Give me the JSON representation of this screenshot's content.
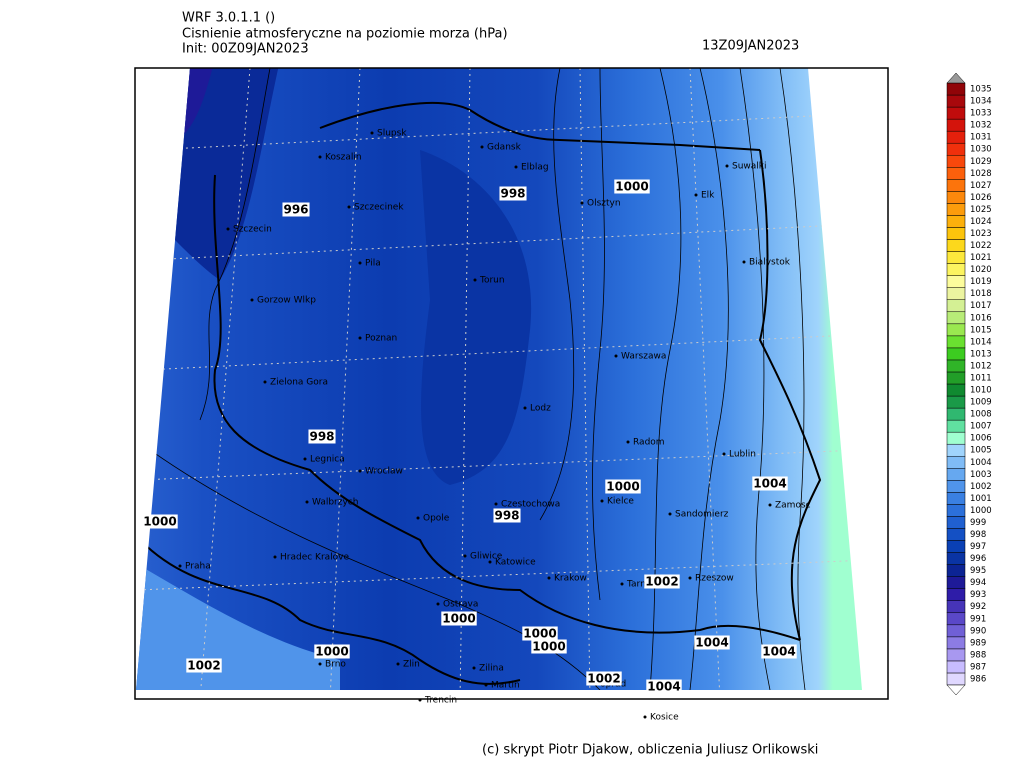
{
  "header": {
    "model": "WRF 3.0.1.1 ()",
    "field": "Cisnienie atmosferyczne na poziomie morza (hPa)",
    "init": "Init: 00Z09JAN2023",
    "valid": "13Z09JAN2023"
  },
  "footer": "(c) skrypt Piotr Djakow, obliczenia Juliusz Orlikowski",
  "cities": [
    "Slupsk",
    "Koszalin",
    "Gdansk",
    "Elblag",
    "Suwalki",
    "Szczecinek",
    "Olsztyn",
    "Elk",
    "Szczecin",
    "Pila",
    "Torun",
    "Bialystok",
    "Gorzow Wlkp",
    "Poznan",
    "Warszawa",
    "Zielona Gora",
    "Lodz",
    "Radom",
    "Lublin",
    "Legnica",
    "Wroclaw",
    "Walbrzych",
    "Czestochowa",
    "Kielce",
    "Zamosc",
    "Opole",
    "Sandomierz",
    "Hradec Kralove",
    "Gliwice",
    "Katowice",
    "Praha",
    "Krakow",
    "Rzeszow",
    "Tarnow",
    "Ostrava",
    "Brno",
    "Zlin",
    "Zilina",
    "Martin",
    "Poprad",
    "Trencin",
    "Kosice"
  ],
  "contour_labels": [
    996,
    998,
    1000,
    998,
    1004,
    1000,
    998,
    1000,
    1002,
    1000,
    1000,
    1000,
    1004,
    1000,
    1004,
    1002,
    1002,
    1004
  ],
  "colorbar": [
    {
      "value": 986,
      "color": "#e0d8ff"
    },
    {
      "value": 987,
      "color": "#c8bcff"
    },
    {
      "value": 988,
      "color": "#a898f0"
    },
    {
      "value": 989,
      "color": "#8c7ce4"
    },
    {
      "value": 990,
      "color": "#7060d6"
    },
    {
      "value": 991,
      "color": "#5a48c8"
    },
    {
      "value": 992,
      "color": "#4634b8"
    },
    {
      "value": 993,
      "color": "#2e1ca8"
    },
    {
      "value": 994,
      "color": "#1e1a98"
    },
    {
      "value": 995,
      "color": "#0c2494"
    },
    {
      "value": 996,
      "color": "#0a34a4"
    },
    {
      "value": 997,
      "color": "#0a40b4"
    },
    {
      "value": 998,
      "color": "#1450c4"
    },
    {
      "value": 999,
      "color": "#2060d0"
    },
    {
      "value": 1000,
      "color": "#2c70da"
    },
    {
      "value": 1001,
      "color": "#3a80e2"
    },
    {
      "value": 1002,
      "color": "#5094ea"
    },
    {
      "value": 1003,
      "color": "#66a8f0"
    },
    {
      "value": 1004,
      "color": "#80bcf6"
    },
    {
      "value": 1005,
      "color": "#a0d4fc"
    },
    {
      "value": 1006,
      "color": "#a0ffd0"
    },
    {
      "value": 1007,
      "color": "#60e0a0"
    },
    {
      "value": 1008,
      "color": "#30b870"
    },
    {
      "value": 1009,
      "color": "#1a9a48"
    },
    {
      "value": 1010,
      "color": "#108a30"
    },
    {
      "value": 1011,
      "color": "#229e28"
    },
    {
      "value": 1012,
      "color": "#30b428"
    },
    {
      "value": 1013,
      "color": "#3ccc20"
    },
    {
      "value": 1014,
      "color": "#6ae030"
    },
    {
      "value": 1015,
      "color": "#9ae850"
    },
    {
      "value": 1016,
      "color": "#b8ec78"
    },
    {
      "value": 1017,
      "color": "#d4f094"
    },
    {
      "value": 1018,
      "color": "#ecf4a0"
    },
    {
      "value": 1019,
      "color": "#fcfc9c"
    },
    {
      "value": 1020,
      "color": "#fcf460"
    },
    {
      "value": 1021,
      "color": "#fce83c"
    },
    {
      "value": 1022,
      "color": "#fcd81c"
    },
    {
      "value": 1023,
      "color": "#fcc40c"
    },
    {
      "value": 1024,
      "color": "#fcb00c"
    },
    {
      "value": 1025,
      "color": "#fc9c0c"
    },
    {
      "value": 1026,
      "color": "#fc880c"
    },
    {
      "value": 1027,
      "color": "#fc740c"
    },
    {
      "value": 1028,
      "color": "#fc600c"
    },
    {
      "value": 1029,
      "color": "#f8480c"
    },
    {
      "value": 1030,
      "color": "#f0300c"
    },
    {
      "value": 1031,
      "color": "#e4200c"
    },
    {
      "value": 1032,
      "color": "#d4140c"
    },
    {
      "value": 1033,
      "color": "#c00c0c"
    },
    {
      "value": 1034,
      "color": "#a8080c"
    },
    {
      "value": 1035,
      "color": "#900408"
    }
  ]
}
